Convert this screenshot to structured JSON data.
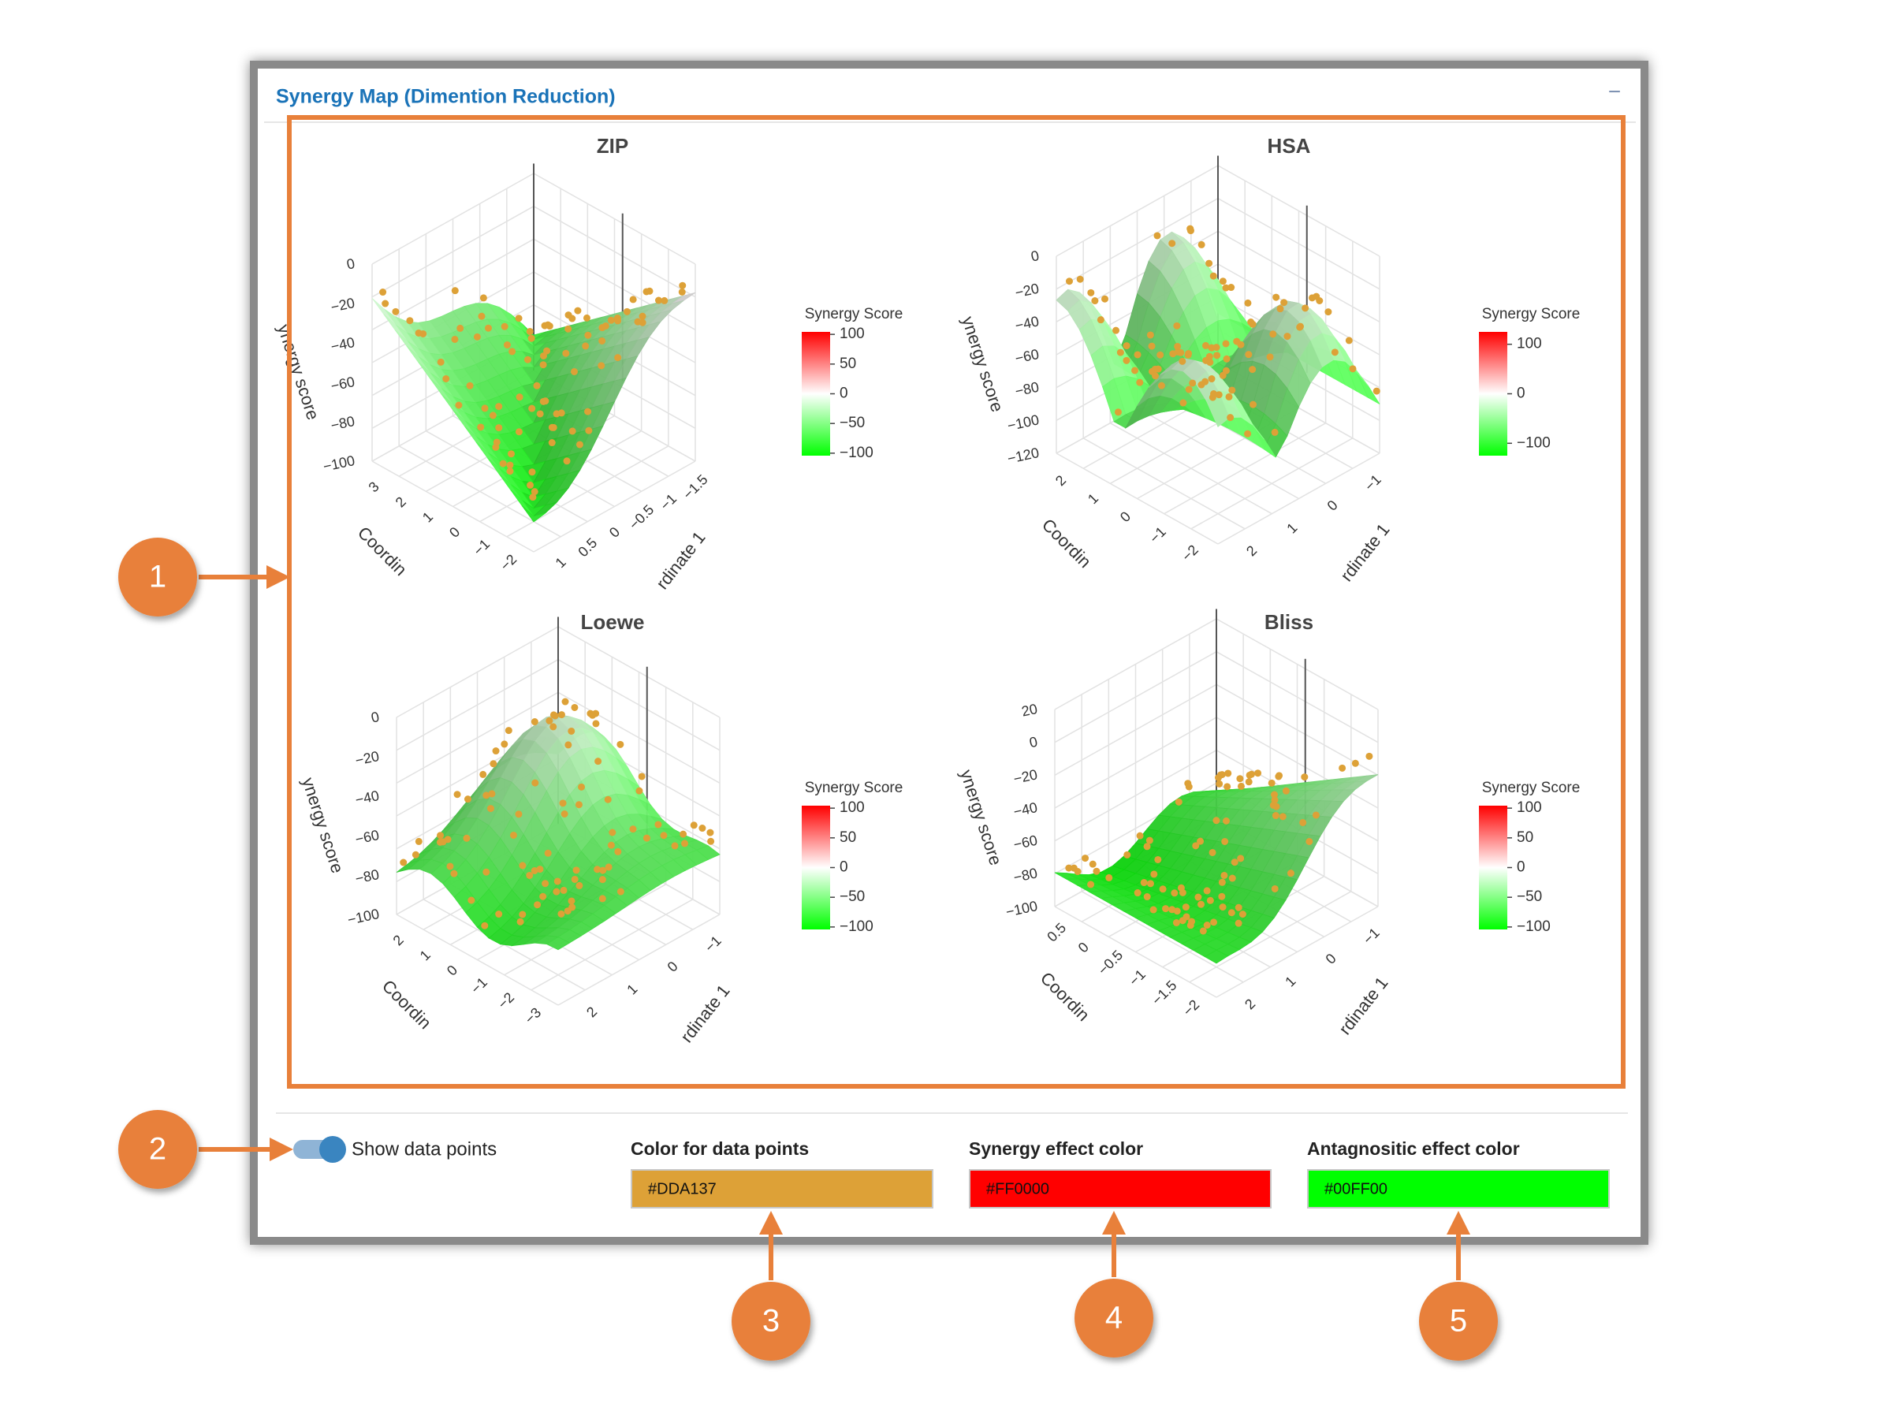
{
  "panel": {
    "title": "Synergy Map (Dimention Reduction)",
    "collapse": "−"
  },
  "plots": [
    {
      "title": "ZIP",
      "colorbar_title": "Synergy Score",
      "colorbar_ticks": [
        "100",
        "50",
        "0",
        "−50",
        "−100"
      ],
      "z_ticks": [
        "0",
        "−20",
        "−40",
        "−60",
        "−80",
        "−100"
      ],
      "x_ticks": [
        "3",
        "2",
        "1",
        "0",
        "−1",
        "−2"
      ],
      "y_ticks": [
        "1",
        "0.5",
        "0",
        "−0.5",
        "−1",
        "−1.5"
      ],
      "z_title": "ynergy score",
      "x_title": "Coordin",
      "y_title": "rdinate 1"
    },
    {
      "title": "HSA",
      "colorbar_title": "Synergy Score",
      "colorbar_ticks": [
        "100",
        "0",
        "−100"
      ],
      "z_ticks": [
        "0",
        "−20",
        "−40",
        "−60",
        "−80",
        "−100",
        "−120"
      ],
      "x_ticks": [
        "2",
        "1",
        "0",
        "−1",
        "−2"
      ],
      "y_ticks": [
        "2",
        "1",
        "0",
        "−1"
      ],
      "z_title": "ynergy score",
      "x_title": "Coordin",
      "y_title": "rdinate 1"
    },
    {
      "title": "Loewe",
      "colorbar_title": "Synergy Score",
      "colorbar_ticks": [
        "100",
        "50",
        "0",
        "−50",
        "−100"
      ],
      "z_ticks": [
        "0",
        "−20",
        "−40",
        "−60",
        "−80",
        "−100"
      ],
      "x_ticks": [
        "2",
        "1",
        "0",
        "−1",
        "−2",
        "−3"
      ],
      "y_ticks": [
        "2",
        "1",
        "0",
        "−1"
      ],
      "z_title": "ynergy score",
      "x_title": "Coordin",
      "y_title": "rdinate 1"
    },
    {
      "title": "Bliss",
      "colorbar_title": "Synergy Score",
      "colorbar_ticks": [
        "100",
        "50",
        "0",
        "−50",
        "−100"
      ],
      "z_ticks": [
        "20",
        "0",
        "−20",
        "−40",
        "−60",
        "−80",
        "−100"
      ],
      "x_ticks": [
        "0.5",
        "0",
        "−0.5",
        "−1",
        "−1.5",
        "−2"
      ],
      "y_ticks": [
        "2",
        "1",
        "0",
        "−1"
      ],
      "z_title": "ynergy score",
      "x_title": "Coordin",
      "y_title": "rdinate 1"
    }
  ],
  "controls": {
    "toggle_label": "Show data points",
    "point_color": {
      "label": "Color for data points",
      "value": "#DDA137"
    },
    "synergy_color": {
      "label": "Synergy effect color",
      "value": "#FF0000"
    },
    "antagonistic_color": {
      "label": "Antagnositic effect color",
      "value": "#00FF00"
    }
  },
  "callouts": [
    "1",
    "2",
    "3",
    "4",
    "5"
  ]
}
